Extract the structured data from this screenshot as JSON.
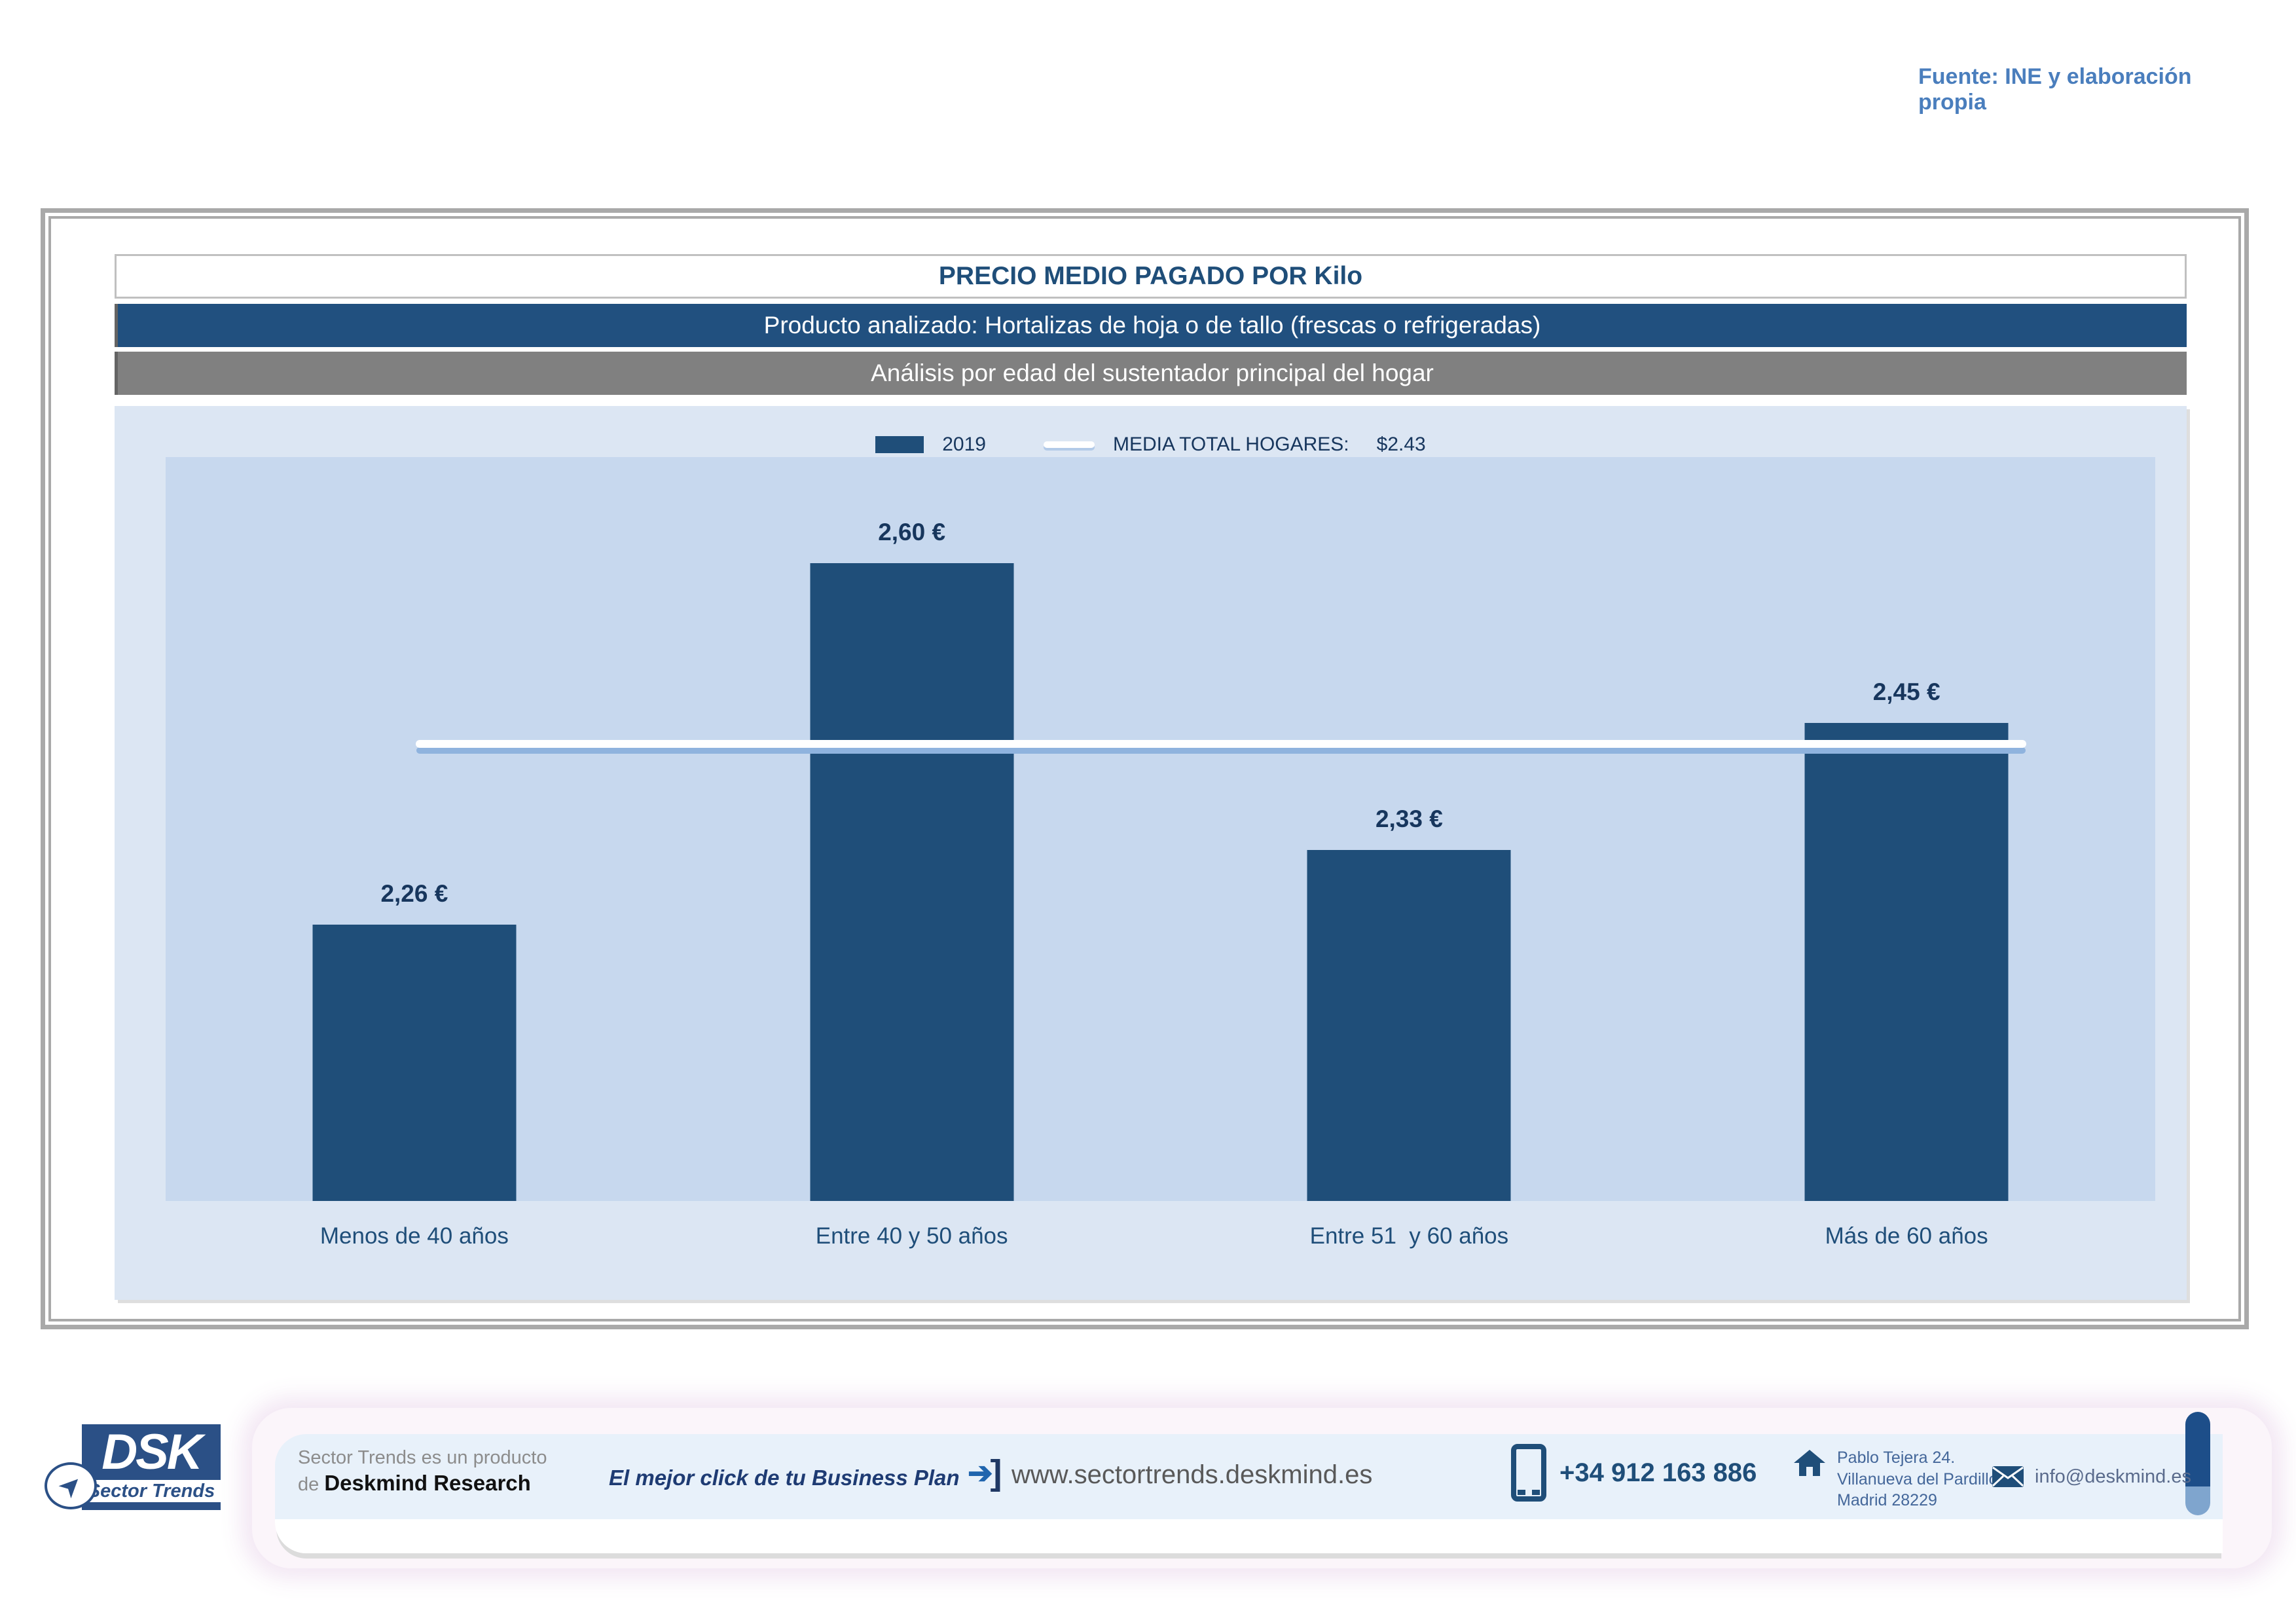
{
  "source_note": "Fuente: INE y elaboración propia",
  "header": {
    "title": "PRECIO MEDIO PAGADO POR Kilo",
    "subtitle_product": "Producto analizado: Hortalizas de hoja o de tallo (frescas o refrigeradas)",
    "subtitle_analysis": "Análisis por edad del sustentador principal del hogar"
  },
  "legend": {
    "series_label": "2019",
    "media_label": "MEDIA TOTAL  HOGARES:",
    "media_value": "$2.43"
  },
  "chart_data": {
    "type": "bar",
    "title": "PRECIO MEDIO PAGADO POR Kilo",
    "categories": [
      "Menos de 40 años",
      "Entre 40 y 50 años",
      "Entre 51  y 60 años",
      "Más de 60 años"
    ],
    "values": [
      2.26,
      2.6,
      2.33,
      2.45
    ],
    "display_values": [
      "2,26 €",
      "2,60 €",
      "2,33 €",
      "2,45 €"
    ],
    "series_name": "2019",
    "mean_line": {
      "label": "MEDIA TOTAL HOGARES",
      "value": 2.43,
      "display": "$2.43"
    },
    "ylim": [
      2.0,
      2.7
    ],
    "ylabel": "",
    "xlabel": "",
    "grid": false,
    "legend_position": "top-center",
    "bar_color": "#1F4E79",
    "plot_bg": "#C7D8EE",
    "chart_bg": "#DCE6F3",
    "mean_line_color": "#FFFFFF"
  },
  "footer": {
    "logo_dsk": "DSK",
    "logo_brand": "Sector Trends",
    "product_line1": "Sector Trends es un producto",
    "product_line2_prefix": "de ",
    "product_line2_bold": "Deskmind Research",
    "tagline": "El mejor click de tu Business Plan",
    "website": "www.sectortrends.deskmind.es",
    "phone": "+34 912 163 886",
    "address_line1": "Pablo Tejera 24.",
    "address_line2": "Villanueva del Pardillo.",
    "address_line3": "Madrid 28229",
    "email": "info@deskmind.es"
  }
}
